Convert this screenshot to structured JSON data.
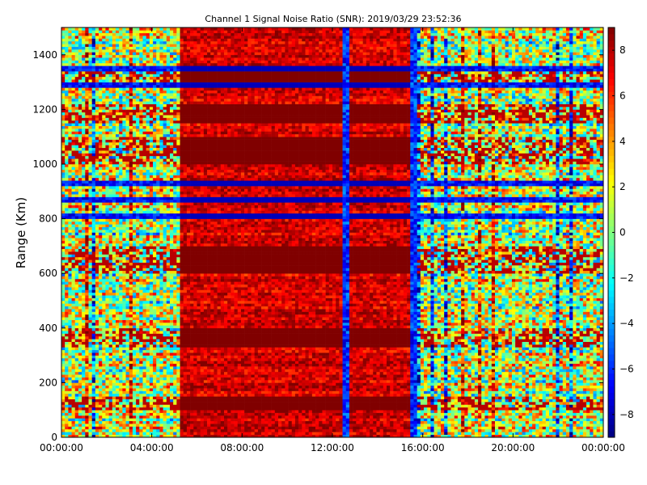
{
  "chart_data": {
    "type": "heatmap",
    "title": "Channel 1 Signal Noise Ratio (SNR): 2019/03/29 23:52:36",
    "xlabel": "",
    "ylabel": "Range (Km)",
    "x_ticks": [
      "00:00:00",
      "04:00:00",
      "08:00:00",
      "12:00:00",
      "16:00:00",
      "20:00:00",
      "00:00:00"
    ],
    "x_range_hours": [
      0,
      24
    ],
    "y_ticks": [
      0,
      200,
      400,
      600,
      800,
      1000,
      1200,
      1400
    ],
    "ylim": [
      0,
      1500
    ],
    "colorbar": {
      "colormap": "jet",
      "ticks": [
        8,
        6,
        4,
        2,
        0,
        -2,
        -4,
        -6,
        -8
      ],
      "range": [
        -9,
        9
      ]
    },
    "features": {
      "high_snr_region_hours": [
        5.3,
        15.5
      ],
      "low_snr_vertical_lines_hours": [
        12.6,
        15.6
      ],
      "high_snr_bands_km": [
        [
          1000,
          1100
        ],
        [
          1150,
          1220
        ],
        [
          1300,
          1340
        ],
        [
          600,
          700
        ],
        [
          330,
          400
        ],
        [
          100,
          150
        ]
      ],
      "low_snr_bands_km": [
        [
          1340,
          1360
        ],
        [
          1280,
          1300
        ],
        [
          860,
          880
        ],
        [
          800,
          820
        ],
        [
          920,
          935
        ]
      ],
      "night_noise_region_hours": [
        [
          0,
          5.3
        ],
        [
          15.6,
          24
        ]
      ]
    }
  }
}
